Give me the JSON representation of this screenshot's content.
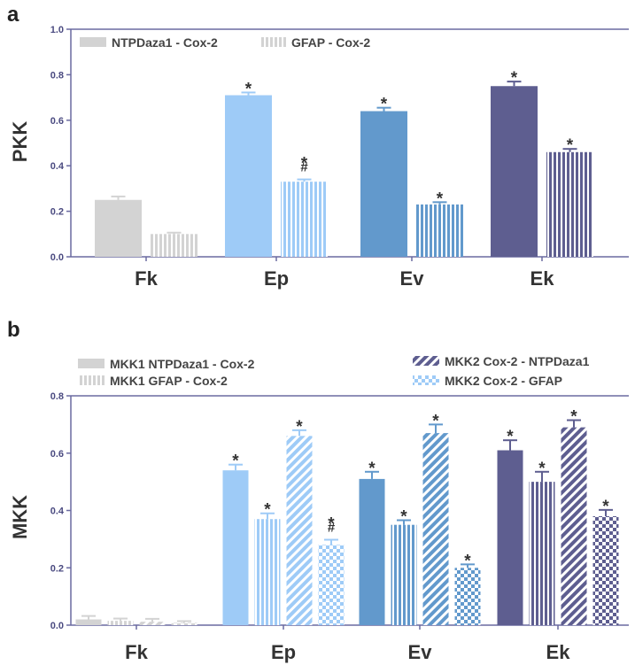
{
  "chart_data": [
    {
      "panel": "a",
      "type": "bar",
      "ylabel": "PKK",
      "ylim": [
        0,
        1.0
      ],
      "yticks": [
        "0.0",
        "0.2",
        "0.4",
        "0.6",
        "0.8",
        "1.0"
      ],
      "categories": [
        "Fk",
        "Ep",
        "Ev",
        "Ek"
      ],
      "category_colors": [
        "#d3d3d3",
        "#9ecbf7",
        "#6299cc",
        "#5e5e90"
      ],
      "series": [
        {
          "name": "NTPDaza1 - Cox-2",
          "pattern": "solid",
          "values": [
            0.25,
            0.71,
            0.64,
            0.75
          ],
          "errors": [
            0.015,
            0.012,
            0.015,
            0.02
          ],
          "annotations": [
            "",
            "*",
            "*",
            "*"
          ]
        },
        {
          "name": "GFAP - Cox-2",
          "pattern": "vertical",
          "values": [
            0.1,
            0.33,
            0.23,
            0.46
          ],
          "errors": [
            0.006,
            0.01,
            0.01,
            0.014
          ],
          "annotations": [
            "",
            "*\n#",
            "*",
            "*"
          ]
        }
      ],
      "legend_position": "top-left"
    },
    {
      "panel": "b",
      "type": "bar",
      "ylabel": "MKK",
      "ylim": [
        0,
        0.8
      ],
      "yticks": [
        "0.0",
        "0.2",
        "0.4",
        "0.6",
        "0.8"
      ],
      "categories": [
        "Fk",
        "Ep",
        "Ev",
        "Ek"
      ],
      "category_colors": [
        "#d3d3d3",
        "#9ecbf7",
        "#6299cc",
        "#5e5e90"
      ],
      "series": [
        {
          "name": "MKK1 NTPDaza1 - Cox-2",
          "pattern": "solid",
          "values": [
            0.02,
            0.54,
            0.51,
            0.61
          ],
          "errors": [
            0.012,
            0.02,
            0.025,
            0.035
          ],
          "annotations": [
            "",
            "*",
            "*",
            "*"
          ]
        },
        {
          "name": "MKK1 GFAP - Cox-2",
          "pattern": "vertical",
          "values": [
            0.015,
            0.37,
            0.35,
            0.5
          ],
          "errors": [
            0.008,
            0.02,
            0.016,
            0.035
          ],
          "annotations": [
            "",
            "*",
            "*",
            "*"
          ]
        },
        {
          "name": "MKK2 Cox-2 - NTPDaza1",
          "pattern": "diagonal",
          "values": [
            0.012,
            0.66,
            0.67,
            0.69
          ],
          "errors": [
            0.01,
            0.02,
            0.03,
            0.025
          ],
          "annotations": [
            "",
            "*",
            "*",
            "*"
          ]
        },
        {
          "name": "MKK2 Cox-2 - GFAP",
          "pattern": "checker",
          "values": [
            0.008,
            0.28,
            0.2,
            0.38
          ],
          "errors": [
            0.006,
            0.018,
            0.012,
            0.022
          ],
          "annotations": [
            "",
            "*\n#",
            "*",
            "*"
          ]
        }
      ],
      "legend_position": "top"
    }
  ]
}
